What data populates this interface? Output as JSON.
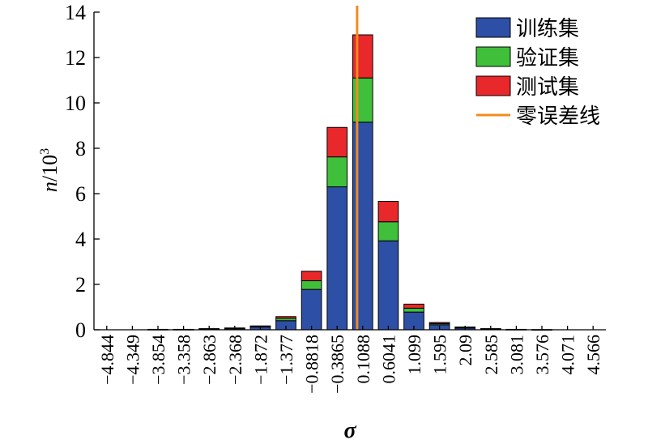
{
  "chart_data": {
    "type": "bar",
    "stacked": true,
    "xlabel": "σ",
    "ylabel_main": "n",
    "ylabel_unit": "/10",
    "ylabel_exp": "3",
    "ylim": [
      0,
      14
    ],
    "yticks": [
      0,
      2,
      4,
      6,
      8,
      10,
      12,
      14
    ],
    "categories": [
      "−4.844",
      "−4.349",
      "−3.854",
      "−3.358",
      "−2.863",
      "−2.368",
      "−1.872",
      "−1.377",
      "−0.8818",
      "−0.3865",
      "0.1088",
      "0.6041",
      "1.099",
      "1.595",
      "2.09",
      "2.585",
      "3.081",
      "3.576",
      "4.071",
      "4.566"
    ],
    "series": [
      {
        "name": "训练集",
        "color": "#2e4fa6",
        "values": [
          0,
          0,
          0.02,
          0.02,
          0.03,
          0.06,
          0.12,
          0.4,
          1.78,
          6.3,
          9.15,
          3.92,
          0.78,
          0.22,
          0.08,
          0.03,
          0.02,
          0.01,
          0,
          0
        ]
      },
      {
        "name": "验证集",
        "color": "#3fbf3a",
        "values": [
          0,
          0,
          0,
          0,
          0.01,
          0.01,
          0.03,
          0.1,
          0.38,
          1.32,
          1.95,
          0.84,
          0.17,
          0.05,
          0.02,
          0.01,
          0,
          0,
          0,
          0
        ]
      },
      {
        "name": "测试集",
        "color": "#e8282a",
        "values": [
          0,
          0,
          0,
          0,
          0.01,
          0.01,
          0.02,
          0.08,
          0.42,
          1.3,
          1.9,
          0.9,
          0.18,
          0.05,
          0.02,
          0.01,
          0,
          0,
          0,
          0
        ]
      }
    ],
    "reference_line": {
      "name": "零误差线",
      "color": "#f28c1e",
      "x": 0
    },
    "legend_position": "top-right",
    "grid": false
  }
}
